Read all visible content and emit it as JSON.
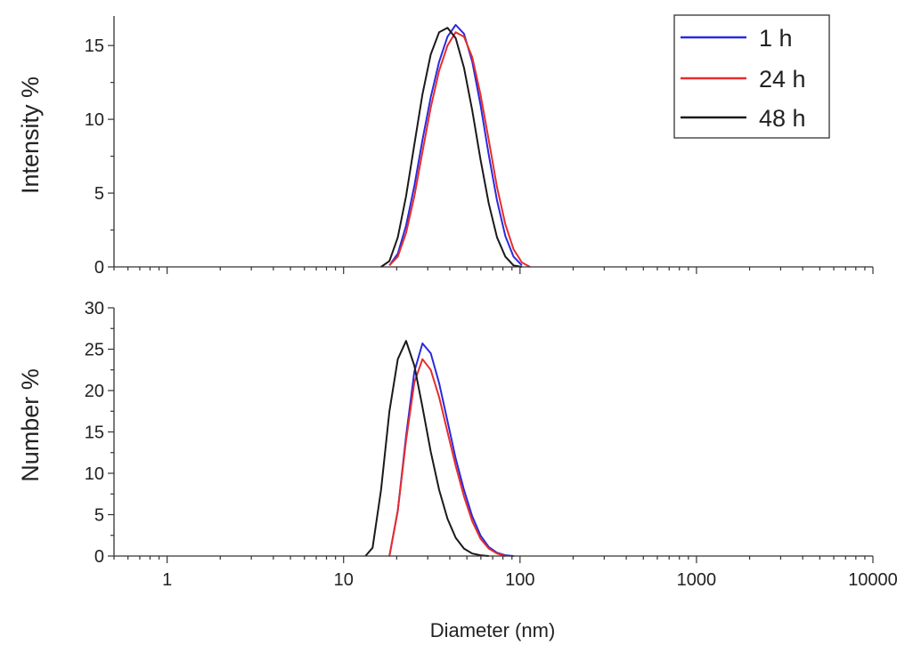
{
  "chart_data": [
    {
      "type": "line",
      "ylabel": "Intensity %",
      "xlabel": "",
      "xscale": "log",
      "xlim": [
        0.5,
        10000
      ],
      "ylim": [
        0,
        17
      ],
      "y_ticks": [
        0,
        5,
        10,
        15
      ],
      "grid": false,
      "legend_position": "top-right",
      "series": [
        {
          "name": "1 h",
          "color": "#2a2adf",
          "x": [
            18.2,
            20.3,
            22.6,
            25.2,
            28.0,
            31.2,
            34.8,
            38.8,
            43.2,
            48.1,
            53.6,
            59.7,
            66.5,
            74.1,
            82.5,
            91.9,
            102.4
          ],
          "y": [
            0.1,
            0.9,
            2.8,
            5.5,
            8.6,
            11.5,
            13.9,
            15.6,
            16.4,
            15.8,
            13.9,
            11.0,
            7.6,
            4.5,
            2.1,
            0.7,
            0.1
          ]
        },
        {
          "name": "24 h",
          "color": "#e82c2c",
          "x": [
            18.2,
            20.3,
            22.6,
            25.2,
            28.0,
            31.2,
            34.8,
            38.8,
            43.2,
            48.1,
            53.6,
            59.7,
            66.5,
            74.1,
            82.5,
            91.9,
            102.4,
            114.0
          ],
          "y": [
            0.1,
            0.7,
            2.3,
            4.8,
            7.8,
            10.8,
            13.3,
            15.0,
            15.9,
            15.6,
            14.2,
            11.7,
            8.6,
            5.4,
            2.9,
            1.2,
            0.3,
            0.0
          ]
        },
        {
          "name": "48 h",
          "color": "#1a1a1a",
          "x": [
            16.3,
            18.2,
            20.3,
            22.6,
            25.2,
            28.0,
            31.2,
            34.8,
            38.8,
            43.2,
            48.1,
            53.6,
            59.7,
            66.5,
            74.1,
            82.5,
            91.9,
            102.4
          ],
          "y": [
            0.0,
            0.4,
            2.0,
            4.8,
            8.3,
            11.7,
            14.4,
            15.9,
            16.2,
            15.5,
            13.5,
            10.6,
            7.3,
            4.3,
            2.0,
            0.7,
            0.1,
            0.0
          ]
        }
      ],
      "legend": [
        "1 h",
        "24 h",
        "48 h"
      ]
    },
    {
      "type": "line",
      "ylabel": "Number %",
      "xlabel": "Diameter (nm)",
      "xscale": "log",
      "xlim": [
        0.5,
        10000
      ],
      "ylim": [
        0,
        30
      ],
      "y_ticks": [
        0,
        5,
        10,
        15,
        20,
        25,
        30
      ],
      "x_ticks": [
        1,
        10,
        100,
        1000,
        10000
      ],
      "x_tick_labels": [
        "1",
        "10",
        "100",
        "1000",
        "10000"
      ],
      "grid": false,
      "series": [
        {
          "name": "1 h",
          "color": "#2a2adf",
          "x": [
            18.2,
            20.3,
            22.6,
            25.2,
            28.0,
            31.2,
            34.8,
            38.8,
            43.2,
            48.1,
            53.6,
            59.7,
            66.5,
            74.1,
            82.5,
            91.9
          ],
          "y": [
            0.0,
            5.5,
            14.5,
            22.3,
            25.7,
            24.5,
            20.9,
            16.3,
            11.8,
            8.0,
            4.8,
            2.5,
            1.1,
            0.4,
            0.1,
            0.0
          ]
        },
        {
          "name": "24 h",
          "color": "#e82c2c",
          "x": [
            18.2,
            20.3,
            22.6,
            25.2,
            28.0,
            31.2,
            34.8,
            38.8,
            43.2,
            48.1,
            53.6,
            59.7,
            66.5,
            74.1,
            82.5
          ],
          "y": [
            0.0,
            5.5,
            14.0,
            21.0,
            23.8,
            22.5,
            19.2,
            15.0,
            10.9,
            7.2,
            4.2,
            2.1,
            0.9,
            0.3,
            0.0
          ]
        },
        {
          "name": "48 h",
          "color": "#1a1a1a",
          "x": [
            13.3,
            14.6,
            16.3,
            18.2,
            20.3,
            22.6,
            25.2,
            28.0,
            31.2,
            34.8,
            38.8,
            43.2,
            48.1,
            53.6,
            59.7,
            66.5
          ],
          "y": [
            0.0,
            1.0,
            8.0,
            17.5,
            23.8,
            26.0,
            23.0,
            18.0,
            12.6,
            8.0,
            4.5,
            2.2,
            0.9,
            0.3,
            0.1,
            0.0
          ]
        }
      ]
    }
  ]
}
